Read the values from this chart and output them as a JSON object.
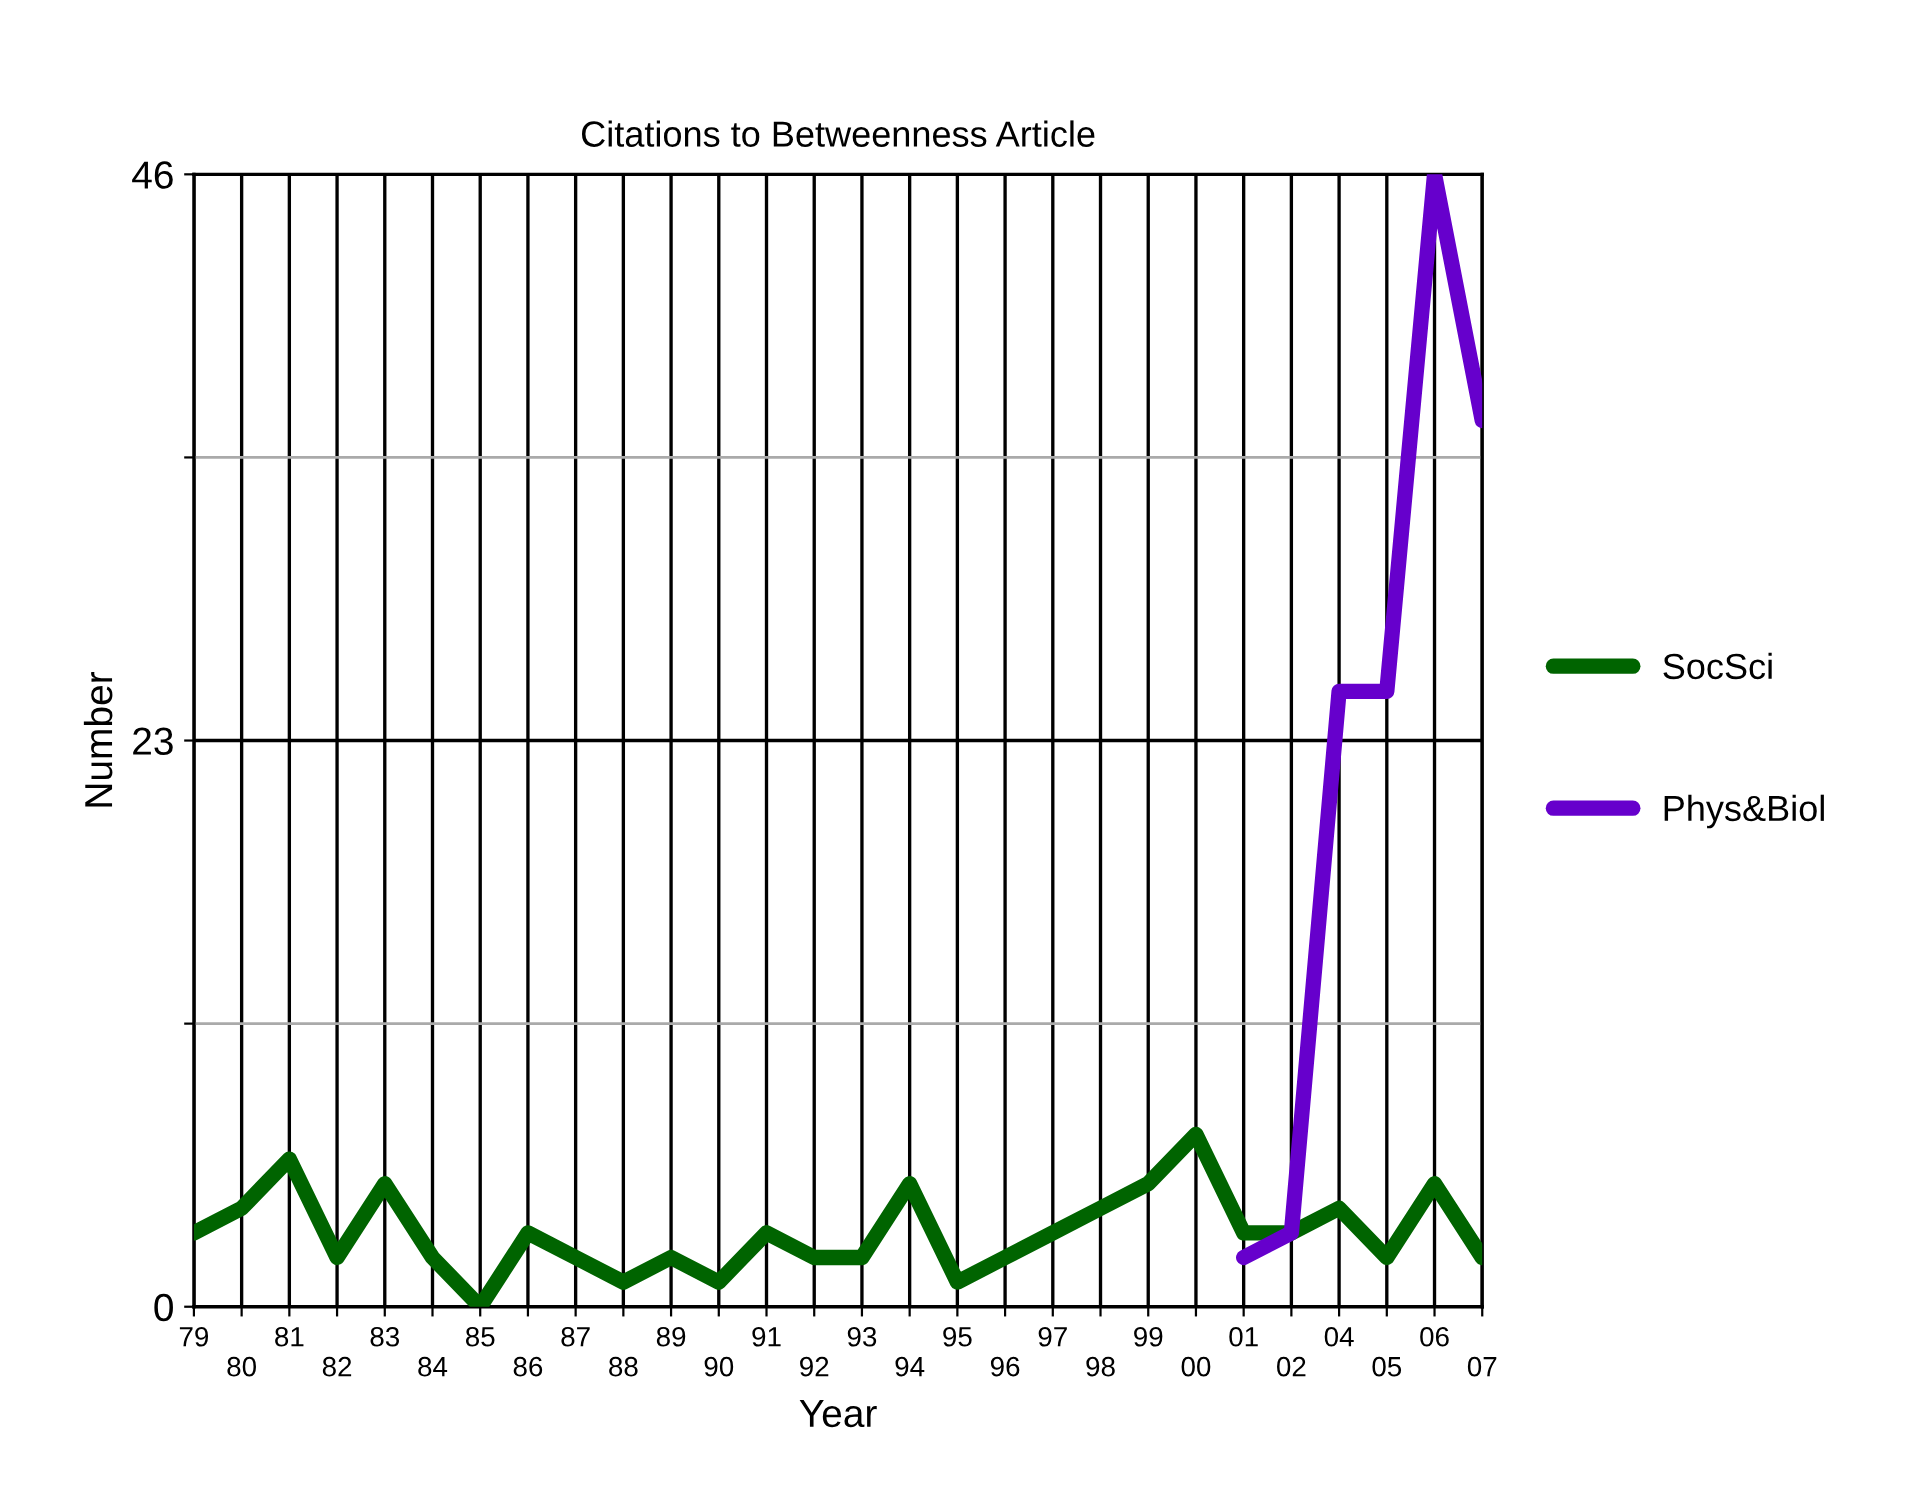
{
  "chart_data": {
    "type": "line",
    "title": "Citations to Betweenness Article",
    "xlabel": "Year",
    "ylabel": "Number",
    "categories": [
      "79",
      "80",
      "81",
      "82",
      "83",
      "84",
      "85",
      "86",
      "87",
      "88",
      "89",
      "90",
      "91",
      "92",
      "93",
      "94",
      "95",
      "96",
      "97",
      "98",
      "99",
      "00",
      "01",
      "02",
      "04",
      "05",
      "06",
      "07"
    ],
    "series": [
      {
        "name": "SocSci",
        "color": "#006400",
        "values": [
          3,
          4,
          6,
          2,
          5,
          2,
          0,
          3,
          2,
          1,
          2,
          1,
          3,
          2,
          2,
          5,
          1,
          2,
          3,
          4,
          5,
          7,
          3,
          3,
          4,
          2,
          5,
          2
        ]
      },
      {
        "name": "Phys&Biol",
        "color": "#6600cc",
        "values": [
          null,
          null,
          null,
          null,
          null,
          null,
          null,
          null,
          null,
          null,
          null,
          null,
          null,
          null,
          null,
          null,
          null,
          null,
          null,
          null,
          null,
          null,
          2,
          3,
          25,
          25,
          46,
          36
        ]
      }
    ],
    "ylim": [
      0,
      46
    ],
    "yticks": [
      0,
      {
        "value": 11.5,
        "label": null
      },
      23,
      {
        "value": 34.5,
        "label": null
      },
      46
    ],
    "grid": true,
    "legend": "right",
    "marker": "none",
    "line_style": "solid"
  }
}
